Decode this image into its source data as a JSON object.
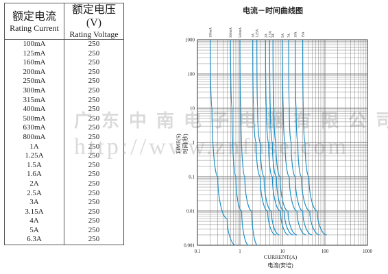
{
  "table": {
    "header": {
      "current_cn": "额定电流",
      "current_en": "Rating Current",
      "voltage_cn": "额定电压(V)",
      "voltage_en": "Rating Voltage"
    },
    "rows": [
      {
        "current": "100mA",
        "voltage": "250"
      },
      {
        "current": "125mA",
        "voltage": "250"
      },
      {
        "current": "160mA",
        "voltage": "250"
      },
      {
        "current": "200mA",
        "voltage": "250"
      },
      {
        "current": "250mA",
        "voltage": "250"
      },
      {
        "current": "300mA",
        "voltage": "250"
      },
      {
        "current": "315mA",
        "voltage": "250"
      },
      {
        "current": "400mA",
        "voltage": "250"
      },
      {
        "current": "500mA",
        "voltage": "250"
      },
      {
        "current": "630mA",
        "voltage": "250"
      },
      {
        "current": "800mA",
        "voltage": "250"
      },
      {
        "current": "1A",
        "voltage": "250"
      },
      {
        "current": "1.25A",
        "voltage": "250"
      },
      {
        "current": "1.5A",
        "voltage": "250"
      },
      {
        "current": "1.6A",
        "voltage": "250"
      },
      {
        "current": "2A",
        "voltage": "250"
      },
      {
        "current": "2.5A",
        "voltage": "250"
      },
      {
        "current": "3A",
        "voltage": "250"
      },
      {
        "current": "3.15A",
        "voltage": "250"
      },
      {
        "current": "4A",
        "voltage": "250"
      },
      {
        "current": "5A",
        "voltage": "250"
      },
      {
        "current": "6.3A",
        "voltage": "250"
      }
    ]
  },
  "watermark": {
    "company": "广东中南电子电器有限公司",
    "url": "http://www.znfuse.com"
  },
  "colors": {
    "curve": "#1f8fc4",
    "grid": "#777777",
    "text": "#1a1a1a"
  },
  "chart_data": {
    "type": "line",
    "title": "电流－时间曲线图",
    "xlabel": "CURRENT(A)",
    "xlabel_cn": "电流(安培)",
    "ylabel": "TIME(S)",
    "ylabel_cn": "时间(秒)",
    "x_scale": "log",
    "y_scale": "log",
    "xlim": [
      0.1,
      1000
    ],
    "ylim": [
      0.001,
      1000
    ],
    "x_ticks": [
      "0.1",
      "1",
      "10",
      "100",
      "1000"
    ],
    "y_ticks": [
      "1000",
      "100",
      "10",
      "1",
      "0.1",
      "0.01",
      "0.001"
    ],
    "grid": true,
    "series": [
      {
        "name": "100mA",
        "points": [
          [
            0.2,
            1000
          ],
          [
            0.22,
            10
          ],
          [
            0.3,
            0.1
          ],
          [
            0.5,
            0.006
          ],
          [
            0.8,
            0.001
          ]
        ]
      },
      {
        "name": "300mA",
        "points": [
          [
            0.6,
            1000
          ],
          [
            0.65,
            10
          ],
          [
            0.8,
            0.1
          ],
          [
            1.1,
            0.01
          ],
          [
            1.6,
            0.001
          ]
        ]
      },
      {
        "name": "500mA",
        "points": [
          [
            1.0,
            1000
          ],
          [
            1.05,
            10
          ],
          [
            1.3,
            0.1
          ],
          [
            1.9,
            0.01
          ],
          [
            2.6,
            0.001
          ]
        ]
      },
      {
        "name": "1A",
        "points": [
          [
            2.0,
            1000
          ],
          [
            2.1,
            10
          ],
          [
            2.4,
            1
          ],
          [
            3,
            0.1
          ],
          [
            4.5,
            0.01
          ],
          [
            7,
            0.002
          ]
        ]
      },
      {
        "name": "1.25A",
        "points": [
          [
            2.5,
            1000
          ],
          [
            2.6,
            10
          ],
          [
            3.0,
            1
          ],
          [
            3.7,
            0.1
          ],
          [
            5.5,
            0.01
          ],
          [
            8.5,
            0.002
          ]
        ]
      },
      {
        "name": "2A",
        "points": [
          [
            4.0,
            1000
          ],
          [
            4.2,
            10
          ],
          [
            4.7,
            1
          ],
          [
            5.8,
            0.1
          ],
          [
            9,
            0.01
          ],
          [
            14,
            0.002
          ]
        ]
      },
      {
        "name": "2.5A",
        "points": [
          [
            5.0,
            1000
          ],
          [
            5.2,
            10
          ],
          [
            5.8,
            1
          ],
          [
            7.2,
            0.1
          ],
          [
            11,
            0.01
          ],
          [
            18,
            0.002
          ]
        ]
      },
      {
        "name": "3A",
        "points": [
          [
            6.0,
            1000
          ],
          [
            6.3,
            10
          ],
          [
            7.0,
            1
          ],
          [
            8.8,
            0.1
          ],
          [
            13.5,
            0.01
          ],
          [
            22,
            0.002
          ]
        ]
      },
      {
        "name": "5A",
        "points": [
          [
            10,
            1000
          ],
          [
            10.5,
            10
          ],
          [
            11.5,
            1
          ],
          [
            14.5,
            0.1
          ],
          [
            22,
            0.01
          ],
          [
            36,
            0.002
          ]
        ]
      },
      {
        "name": "7A",
        "points": [
          [
            14,
            1000
          ],
          [
            14.5,
            10
          ],
          [
            16,
            1
          ],
          [
            20,
            0.1
          ],
          [
            30,
            0.01
          ],
          [
            50,
            0.002
          ]
        ]
      },
      {
        "name": "10A",
        "points": [
          [
            20,
            1000
          ],
          [
            21,
            10
          ],
          [
            23,
            1
          ],
          [
            28,
            0.1
          ],
          [
            44,
            0.01
          ],
          [
            75,
            0.002
          ]
        ]
      },
      {
        "name": "15A",
        "points": [
          [
            30,
            1000
          ],
          [
            31,
            10
          ],
          [
            34,
            1
          ],
          [
            42,
            0.1
          ],
          [
            66,
            0.01
          ],
          [
            110,
            0.002
          ]
        ]
      }
    ]
  }
}
